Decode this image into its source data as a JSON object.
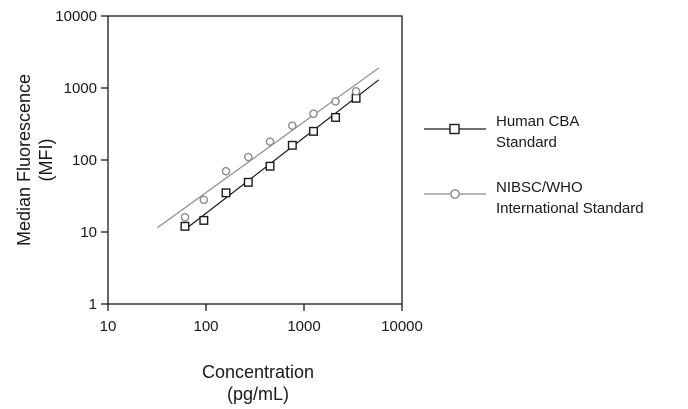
{
  "chart_data": {
    "type": "scatter",
    "xscale": "log",
    "yscale": "log",
    "xlim": [
      10,
      10000
    ],
    "ylim": [
      1,
      10000
    ],
    "x_ticks": [
      "10",
      "100",
      "1000",
      "10000"
    ],
    "y_ticks": [
      "1",
      "10",
      "100",
      "1000",
      "10000"
    ],
    "xlabel": [
      "Concentration",
      "(pg/mL)"
    ],
    "ylabel": [
      "Median Fluorescence",
      "(MFI)"
    ],
    "grid": false,
    "legend_position": "right",
    "series": [
      {
        "name": [
          "Human CBA",
          "Standard"
        ],
        "marker": "square",
        "color": "#1a1a1a",
        "x": [
          61,
          95,
          160,
          270,
          450,
          760,
          1250,
          2100,
          3400
        ],
        "y": [
          12,
          14.5,
          35,
          49,
          82,
          160,
          250,
          390,
          720
        ],
        "fit_line": {
          "x": [
            62,
            5800
          ],
          "y": [
            11,
            1300
          ]
        }
      },
      {
        "name": [
          "NIBSC/WHO",
          "International Standard"
        ],
        "marker": "circle",
        "color": "#8c8c8c",
        "x": [
          61,
          95,
          160,
          270,
          450,
          760,
          1250,
          2100,
          3400
        ],
        "y": [
          16,
          28,
          70,
          110,
          180,
          300,
          440,
          650,
          900
        ],
        "fit_line": {
          "x": [
            32,
            5800
          ],
          "y": [
            11.5,
            1900
          ]
        }
      }
    ]
  }
}
